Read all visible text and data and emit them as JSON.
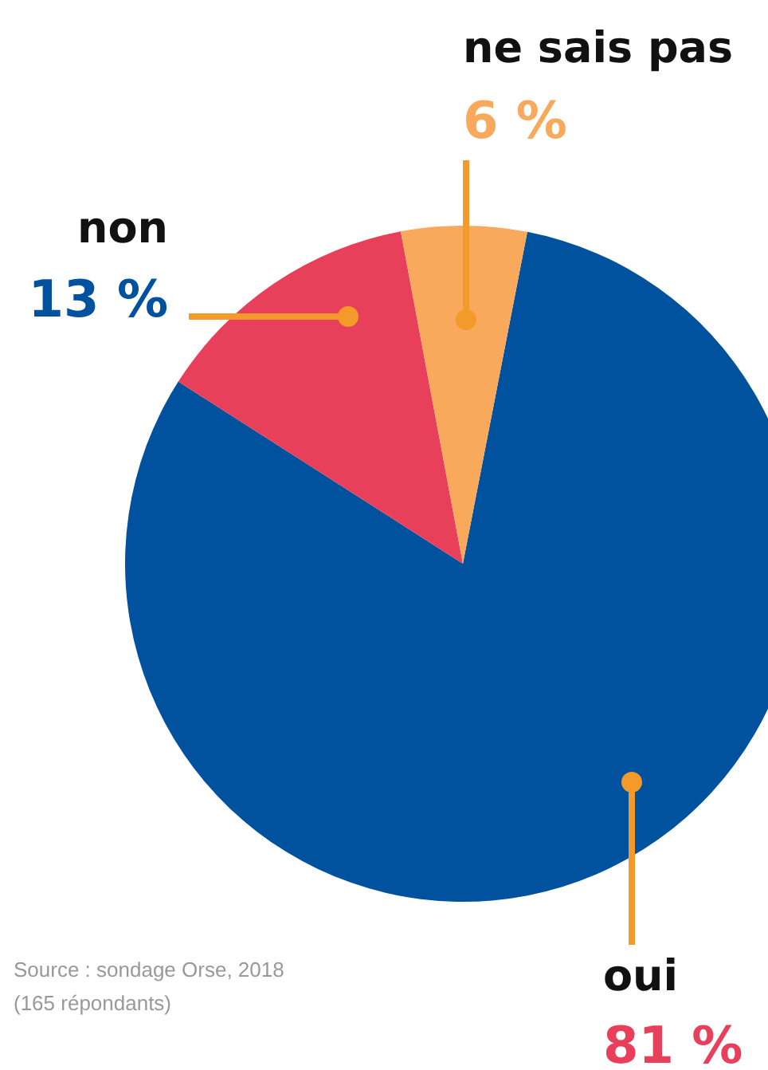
{
  "chart_data": {
    "type": "pie",
    "categories": [
      "oui",
      "non",
      "ne sais pas"
    ],
    "values": [
      81,
      13,
      6
    ],
    "colors": [
      "#00519e",
      "#e83f5b",
      "#f9a95b"
    ],
    "value_labels": [
      "81 %",
      "13 %",
      "6 %"
    ],
    "annotations": [
      "Source : sondage Orse, 2018\n(165 répondants)"
    ]
  }
}
